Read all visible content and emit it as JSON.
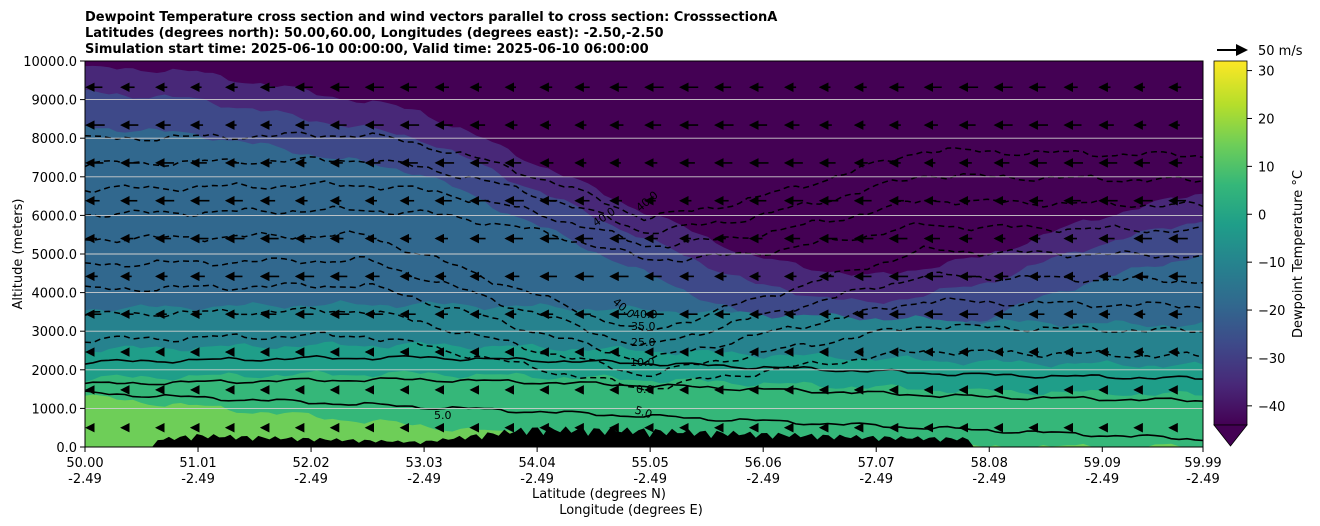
{
  "chart_data": {
    "type": "heatmap",
    "title_lines": [
      "Dewpoint Temperature cross section and wind vectors parallel to cross section: CrosssectionA",
      "Latitudes (degrees north): 50.00,60.00, Longitudes (degrees east): -2.50,-2.50",
      "Simulation start time: 2025-06-10 00:00:00, Valid time: 2025-06-10 06:00:00"
    ],
    "ylabel": "Altitude (meters)",
    "xlabel_lat": "Latitude (degrees N)",
    "xlabel_lon": "Longitude (degrees E)",
    "ylim": [
      0,
      10000
    ],
    "xlim": [
      50.0,
      59.99
    ],
    "yticks": [
      "0.0",
      "1000.0",
      "2000.0",
      "3000.0",
      "4000.0",
      "5000.0",
      "6000.0",
      "7000.0",
      "8000.0",
      "9000.0",
      "10000.0"
    ],
    "xticks": [
      {
        "lat": "50.00",
        "lon": "-2.49"
      },
      {
        "lat": "51.01",
        "lon": "-2.49"
      },
      {
        "lat": "52.02",
        "lon": "-2.49"
      },
      {
        "lat": "53.03",
        "lon": "-2.49"
      },
      {
        "lat": "54.04",
        "lon": "-2.49"
      },
      {
        "lat": "55.05",
        "lon": "-2.49"
      },
      {
        "lat": "56.06",
        "lon": "-2.49"
      },
      {
        "lat": "57.07",
        "lon": "-2.49"
      },
      {
        "lat": "58.08",
        "lon": "-2.49"
      },
      {
        "lat": "59.09",
        "lon": "-2.49"
      },
      {
        "lat": "59.99",
        "lon": "-2.49"
      }
    ],
    "grid": "horizontal",
    "colorbar": {
      "label": "Dewpoint Temperature °C",
      "ticks": [
        "30",
        "20",
        "10",
        "0",
        "−10",
        "−20",
        "−30",
        "−40"
      ],
      "range": [
        -44,
        32
      ],
      "extend": "min"
    },
    "colormap": [
      "#440154",
      "#482878",
      "#3e4989",
      "#31688e",
      "#26828e",
      "#1f9e89",
      "#35b779",
      "#6ece58",
      "#b5de2b",
      "#fde725"
    ],
    "quiver_key": {
      "label": "50 m/s"
    },
    "contour_labels": [
      "5.0",
      "0.0",
      "5.0",
      "10.0",
      "25.0",
      "35.0",
      "40.0",
      "40.0",
      "40.0",
      "40.0"
    ],
    "fields": {
      "surface_layer_top_m": [
        2280,
        2330,
        2380,
        2400,
        2330,
        2250,
        2150,
        2050,
        1950,
        1900,
        1850
      ],
      "upper_dry_slope_top_m": [
        9000,
        8800,
        8300,
        7800,
        6500,
        5200,
        4000,
        3500,
        4000,
        5000,
        5700
      ],
      "terrain_peak_m": [
        0,
        350,
        250,
        150,
        550,
        500,
        400,
        300,
        250,
        100,
        0
      ]
    },
    "wind_direction": "westward (toward lower latitude) in upper levels, weak near surface"
  }
}
